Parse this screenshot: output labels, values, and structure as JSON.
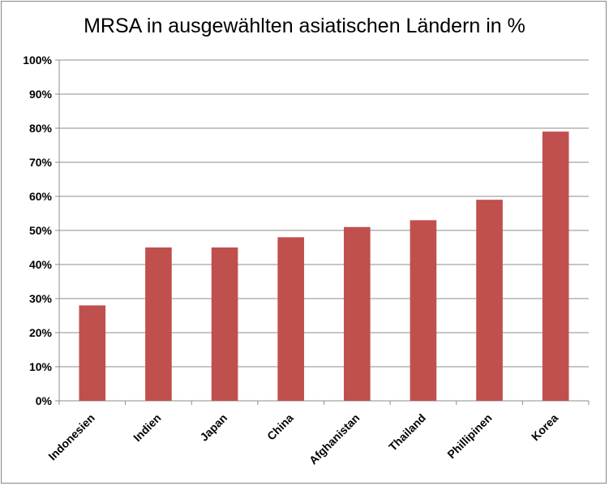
{
  "chart_data": {
    "type": "bar",
    "title": "MRSA in ausgewählten asiatischen Ländern in %",
    "categories": [
      "Indonesien",
      "Indien",
      "Japan",
      "China",
      "Afghanistan",
      "Thailand",
      "Phillipinen",
      "Korea"
    ],
    "values": [
      28,
      45,
      45,
      48,
      51,
      53,
      59,
      79
    ],
    "ylim": [
      0,
      100
    ],
    "yticks": [
      "0%",
      "10%",
      "20%",
      "30%",
      "40%",
      "50%",
      "60%",
      "70%",
      "80%",
      "90%",
      "100%"
    ],
    "grid": true,
    "legend": "none",
    "bar_color": "#C0504D",
    "grid_color": "#8C8C8C"
  }
}
